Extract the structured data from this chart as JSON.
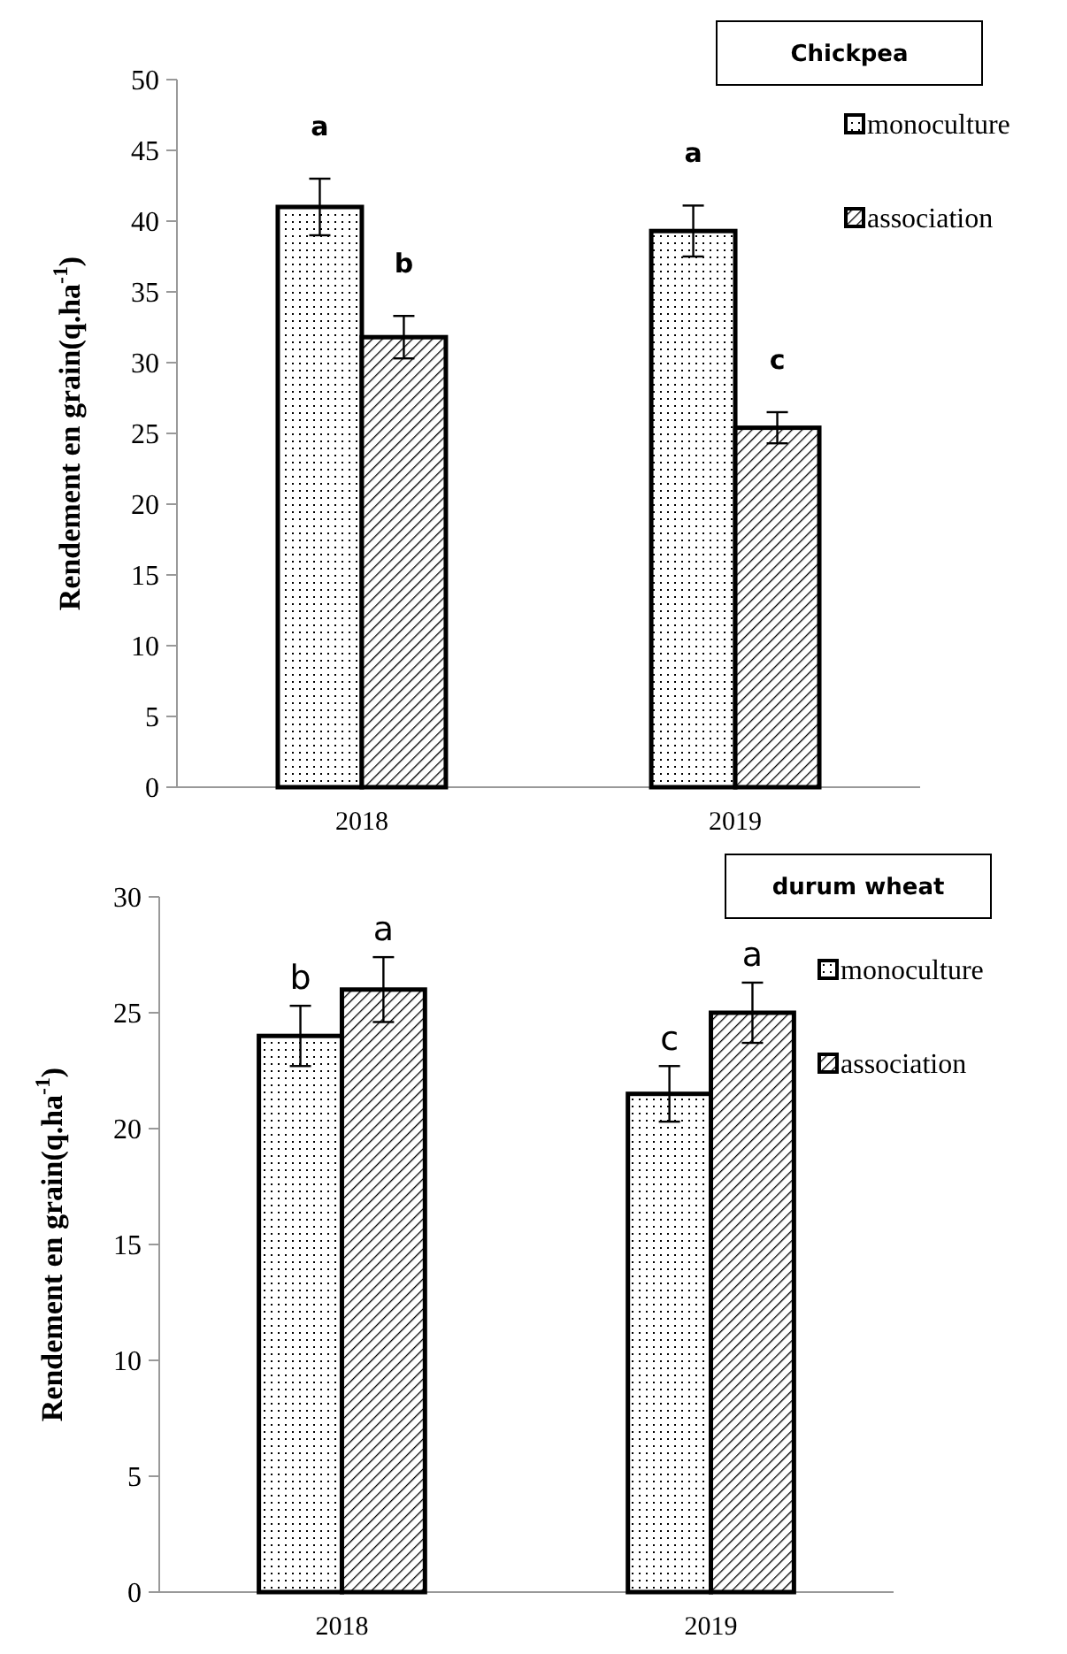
{
  "chart_data": [
    {
      "type": "bar",
      "title": "Chickpea",
      "ylabel": "Rendement en grain(q.ha$^{-1}$)",
      "categories": [
        "2018",
        "2019"
      ],
      "series": [
        {
          "name": "monoculture",
          "color": "#000000",
          "values": [
            41,
            39.3
          ],
          "errors": [
            2,
            1.8
          ]
        },
        {
          "name": "association",
          "color": "#000000",
          "values": [
            31.8,
            25.4
          ],
          "errors": [
            1.5,
            1.1
          ]
        }
      ],
      "ylim": [
        0,
        50
      ],
      "yticks": [
        0,
        5,
        10,
        15,
        20,
        25,
        30,
        35,
        40,
        45,
        50
      ],
      "grid": false,
      "legend": "top right",
      "annotations": [
        {
          "text": "a",
          "x": "2018",
          "y": 41
        },
        {
          "text": "b",
          "x": "2018",
          "y": 31.8
        },
        {
          "text": "a",
          "x": "2019",
          "y": 39.3
        },
        {
          "text": "c",
          "x": "2019",
          "y": 25.4
        }
      ]
    },
    {
      "type": "bar",
      "title": "durum wheat",
      "ylabel": "Rendement en grain(q.ha$^{-1}$)",
      "categories": [
        "2018",
        "2019"
      ],
      "series": [
        {
          "name": "monoculture",
          "color": "#000000",
          "values": [
            24,
            21.5
          ],
          "errors": [
            1.3,
            1.2
          ]
        },
        {
          "name": "association",
          "color": "#000000",
          "values": [
            26,
            25
          ],
          "errors": [
            1.4,
            1.3
          ]
        }
      ],
      "ylim": [
        0,
        30
      ],
      "yticks": [
        0,
        5,
        10,
        15,
        20,
        25,
        30
      ],
      "grid": false,
      "legend": "top right",
      "annotations": [
        {
          "text": "b",
          "x": "2018",
          "y": 24
        },
        {
          "text": "a",
          "x": "2018",
          "y": 26
        },
        {
          "text": "c",
          "x": "2019",
          "y": 21.5
        },
        {
          "text": "a",
          "x": "2019",
          "y": 25
        }
      ]
    }
  ]
}
